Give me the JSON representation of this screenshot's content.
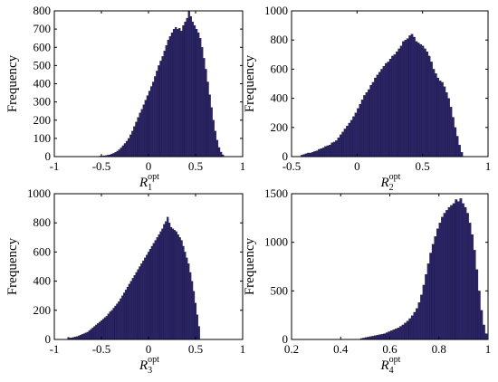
{
  "chart_data": [
    {
      "type": "bar",
      "title": "",
      "ylabel": "Frequency",
      "xlabel": {
        "base": "R",
        "sub": "1",
        "sup": "opt"
      },
      "xlim": [
        -1,
        1
      ],
      "ylim": [
        0,
        800
      ],
      "xticks": [
        "-1",
        "-0.5",
        "0",
        "0.5",
        "1"
      ],
      "yticks": [
        "0",
        "100",
        "200",
        "300",
        "400",
        "500",
        "600",
        "700",
        "800"
      ],
      "bin_width": 0.02,
      "bin_start": -1,
      "values": [
        0,
        0,
        0,
        0,
        0,
        0,
        0,
        0,
        0,
        0,
        0,
        0,
        0,
        0,
        0,
        0,
        0,
        0,
        0,
        0,
        0,
        0,
        0,
        2,
        3,
        4,
        5,
        6,
        8,
        10,
        14,
        18,
        24,
        30,
        38,
        48,
        60,
        72,
        85,
        100,
        120,
        140,
        165,
        190,
        215,
        240,
        260,
        285,
        310,
        335,
        360,
        385,
        410,
        440,
        470,
        500,
        525,
        550,
        580,
        610,
        640,
        660,
        680,
        700,
        710,
        700,
        705,
        690,
        720,
        740,
        760,
        800,
        770,
        740,
        720,
        700,
        680,
        650,
        600,
        540,
        480,
        410,
        340,
        270,
        200,
        140,
        90,
        50,
        25,
        10
      ]
    },
    {
      "type": "bar",
      "title": "",
      "ylabel": "Frequency",
      "xlabel": {
        "base": "R",
        "sub": "2",
        "sup": "opt"
      },
      "xlim": [
        -0.5,
        1
      ],
      "ylim": [
        0,
        1000
      ],
      "xticks": [
        "-0.5",
        "0",
        "0.5",
        "1"
      ],
      "yticks": [
        "0",
        "200",
        "400",
        "600",
        "800",
        "1000"
      ],
      "bin_width": 0.0165,
      "bin_start": -0.43,
      "values": [
        10,
        15,
        20,
        25,
        25,
        30,
        35,
        40,
        50,
        55,
        60,
        70,
        75,
        80,
        95,
        100,
        110,
        130,
        150,
        170,
        190,
        210,
        230,
        250,
        275,
        300,
        330,
        360,
        390,
        420,
        440,
        460,
        490,
        510,
        540,
        560,
        580,
        600,
        620,
        640,
        650,
        670,
        690,
        700,
        720,
        740,
        760,
        790,
        800,
        810,
        830,
        840,
        820,
        790,
        780,
        770,
        760,
        740,
        720,
        690,
        650,
        600,
        570,
        540,
        520,
        510,
        480,
        440,
        400,
        340,
        270,
        200,
        140,
        80,
        30
      ]
    },
    {
      "type": "bar",
      "title": "",
      "ylabel": "Frequency",
      "xlabel": {
        "base": "R",
        "sub": "3",
        "sup": "opt"
      },
      "xlim": [
        -1,
        1
      ],
      "ylim": [
        0,
        1000
      ],
      "xticks": [
        "-1",
        "-0.5",
        "0",
        "0.5",
        "1"
      ],
      "yticks": [
        "0",
        "200",
        "400",
        "600",
        "800",
        "1000"
      ],
      "bin_width": 0.0185,
      "bin_start": -0.86,
      "values": [
        15,
        10,
        12,
        15,
        18,
        20,
        25,
        30,
        35,
        40,
        45,
        50,
        60,
        70,
        80,
        90,
        100,
        110,
        120,
        130,
        140,
        150,
        160,
        175,
        190,
        200,
        215,
        230,
        245,
        260,
        280,
        300,
        320,
        340,
        360,
        380,
        400,
        420,
        440,
        460,
        480,
        500,
        520,
        540,
        560,
        580,
        600,
        620,
        640,
        660,
        680,
        700,
        720,
        740,
        760,
        790,
        810,
        840,
        800,
        770,
        760,
        750,
        740,
        720,
        700,
        680,
        640,
        600,
        560,
        520,
        460,
        400,
        330,
        250,
        170,
        90
      ]
    },
    {
      "type": "bar",
      "title": "",
      "ylabel": "Frequency",
      "xlabel": {
        "base": "R",
        "sub": "4",
        "sup": "opt"
      },
      "xlim": [
        0.2,
        1
      ],
      "ylim": [
        0,
        1500
      ],
      "xticks": [
        "0.2",
        "0.4",
        "0.6",
        "0.8",
        "1"
      ],
      "yticks": [
        "0",
        "500",
        "1000",
        "1500"
      ],
      "bin_width": 0.0094,
      "bin_start": 0.48,
      "values": [
        10,
        15,
        20,
        25,
        30,
        35,
        40,
        45,
        50,
        55,
        60,
        70,
        80,
        90,
        100,
        110,
        120,
        135,
        150,
        170,
        190,
        215,
        245,
        280,
        320,
        380,
        460,
        560,
        670,
        780,
        890,
        980,
        1060,
        1140,
        1200,
        1260,
        1300,
        1330,
        1360,
        1380,
        1400,
        1440,
        1420,
        1450,
        1400,
        1360,
        1300,
        1200,
        1080,
        920,
        720,
        500,
        300,
        150,
        60
      ]
    }
  ]
}
